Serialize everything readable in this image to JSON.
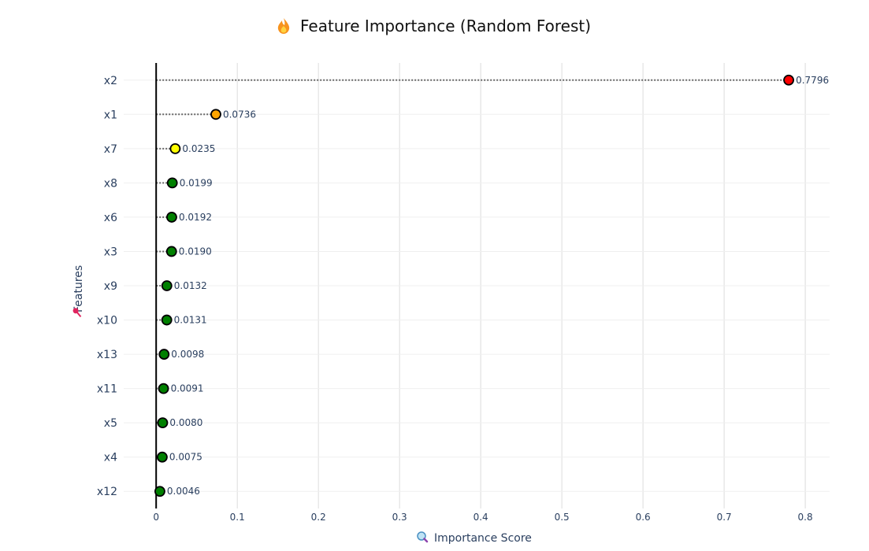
{
  "chart_data": {
    "type": "scatter",
    "title": "Feature Importance (Random Forest)",
    "title_icon": "fire-icon",
    "xlabel": "Importance Score",
    "xlabel_icon": "magnifier-icon",
    "ylabel": "Features",
    "ylabel_icon": "pushpin-icon",
    "xlim": [
      -0.04,
      0.83
    ],
    "xticks": [
      0,
      0.1,
      0.2,
      0.3,
      0.4,
      0.5,
      0.6,
      0.7,
      0.8
    ],
    "xtick_labels": [
      "0",
      "0.1",
      "0.2",
      "0.3",
      "0.4",
      "0.5",
      "0.6",
      "0.7",
      "0.8"
    ],
    "grid": true,
    "categories": [
      "x2",
      "x1",
      "x7",
      "x8",
      "x6",
      "x3",
      "x9",
      "x10",
      "x13",
      "x11",
      "x5",
      "x4",
      "x12"
    ],
    "values": [
      0.7796,
      0.0736,
      0.0235,
      0.0199,
      0.0192,
      0.019,
      0.0132,
      0.0131,
      0.0098,
      0.0091,
      0.008,
      0.0075,
      0.0046
    ],
    "value_labels": [
      "0.7796",
      "0.0736",
      "0.0235",
      "0.0199",
      "0.0192",
      "0.0190",
      "0.0132",
      "0.0131",
      "0.0098",
      "0.0091",
      "0.0080",
      "0.0075",
      "0.0046"
    ],
    "marker_colors": [
      "#ff0000",
      "#ffa500",
      "#ffff00",
      "#008000",
      "#008000",
      "#008000",
      "#008000",
      "#008000",
      "#008000",
      "#008000",
      "#008000",
      "#008000",
      "#008000"
    ],
    "connector_color": "#666666",
    "zero_line_color": "#000000"
  }
}
